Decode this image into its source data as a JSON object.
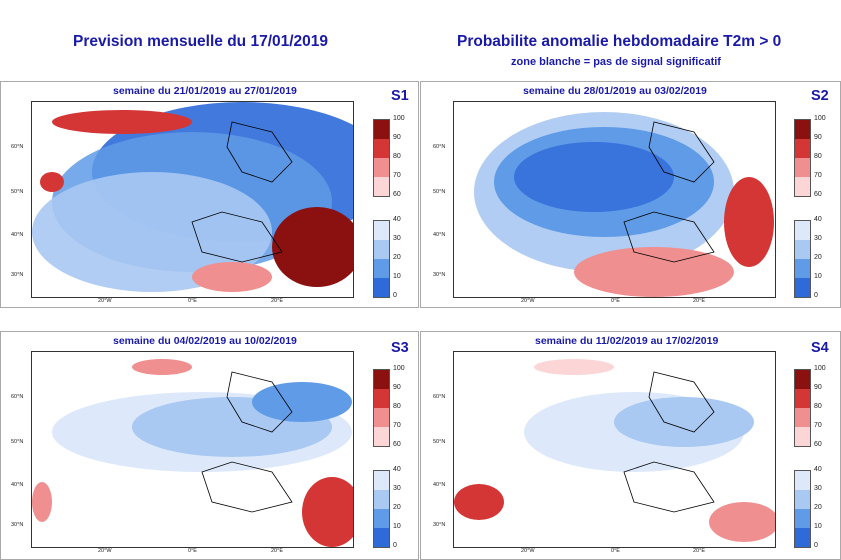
{
  "header": {
    "title_left": "Prevision mensuelle du 17/01/2019",
    "title_right": "Probabilite anomalie hebdomadaire T2m > 0",
    "subtitle_right": "zone blanche = pas de signal significatif"
  },
  "panels": [
    {
      "label": "S1",
      "week": "semaine du 21/01/2019 au 27/01/2019"
    },
    {
      "label": "S2",
      "week": "semaine du 28/01/2019 au 03/02/2019"
    },
    {
      "label": "S3",
      "week": "semaine du 04/02/2019 au 10/02/2019"
    },
    {
      "label": "S4",
      "week": "semaine du 11/02/2019 au 17/02/2019"
    }
  ],
  "axes": {
    "lat_labels": [
      "60°N",
      "50°N",
      "40°N",
      "30°N"
    ],
    "lon_labels": [
      "20°W",
      "0°E",
      "20°E"
    ]
  },
  "colorbar": {
    "warm_ticks": [
      "100",
      "90",
      "80",
      "70",
      "60"
    ],
    "cold_ticks": [
      "40",
      "30",
      "20",
      "10",
      "0"
    ],
    "warm_colors": [
      "#8b1111",
      "#d43636",
      "#ef8f8f",
      "#fcd6d6"
    ],
    "cold_colors": [
      "#dde9fb",
      "#a9c8f2",
      "#5f9be6",
      "#2e6ad8"
    ]
  }
}
